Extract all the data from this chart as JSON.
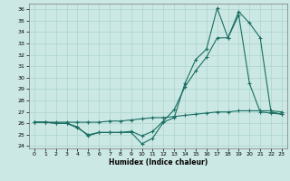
{
  "xlabel": "Humidex (Indice chaleur)",
  "bg_color": "#cce8e4",
  "grid_color": "#aad4cc",
  "line_color": "#1a6e62",
  "ylim": [
    23.8,
    36.5
  ],
  "xlim": [
    -0.5,
    23.5
  ],
  "yticks": [
    24,
    25,
    26,
    27,
    28,
    29,
    30,
    31,
    32,
    33,
    34,
    35,
    36
  ],
  "xticks": [
    0,
    1,
    2,
    3,
    4,
    5,
    6,
    7,
    8,
    9,
    10,
    11,
    12,
    13,
    14,
    15,
    16,
    17,
    18,
    19,
    20,
    21,
    22,
    23
  ],
  "series1_x": [
    0,
    1,
    2,
    3,
    4,
    5,
    6,
    7,
    8,
    9,
    10,
    11,
    12,
    13,
    14,
    15,
    16,
    17,
    18,
    19,
    20,
    21,
    22,
    23
  ],
  "series1_y": [
    26.1,
    26.1,
    26.0,
    26.0,
    25.7,
    24.9,
    25.2,
    25.2,
    25.2,
    25.2,
    24.2,
    24.7,
    26.1,
    26.5,
    29.5,
    31.6,
    32.5,
    36.1,
    33.5,
    35.5,
    29.5,
    27.0,
    26.9,
    26.8
  ],
  "series2_x": [
    0,
    1,
    2,
    3,
    4,
    5,
    6,
    7,
    8,
    9,
    10,
    11,
    12,
    13,
    14,
    15,
    16,
    17,
    18,
    19,
    20,
    21,
    22,
    23
  ],
  "series2_y": [
    26.1,
    26.1,
    26.0,
    26.0,
    25.6,
    25.0,
    25.2,
    25.2,
    25.2,
    25.3,
    24.9,
    25.3,
    26.2,
    27.2,
    29.2,
    30.6,
    31.8,
    33.5,
    33.5,
    35.8,
    34.8,
    33.5,
    27.0,
    26.8
  ],
  "series3_x": [
    0,
    1,
    2,
    3,
    4,
    5,
    6,
    7,
    8,
    9,
    10,
    11,
    12,
    13,
    14,
    15,
    16,
    17,
    18,
    19,
    20,
    21,
    22,
    23
  ],
  "series3_y": [
    26.1,
    26.1,
    26.1,
    26.1,
    26.1,
    26.1,
    26.1,
    26.2,
    26.2,
    26.3,
    26.4,
    26.5,
    26.5,
    26.6,
    26.7,
    26.8,
    26.9,
    27.0,
    27.0,
    27.1,
    27.1,
    27.1,
    27.1,
    27.0
  ]
}
